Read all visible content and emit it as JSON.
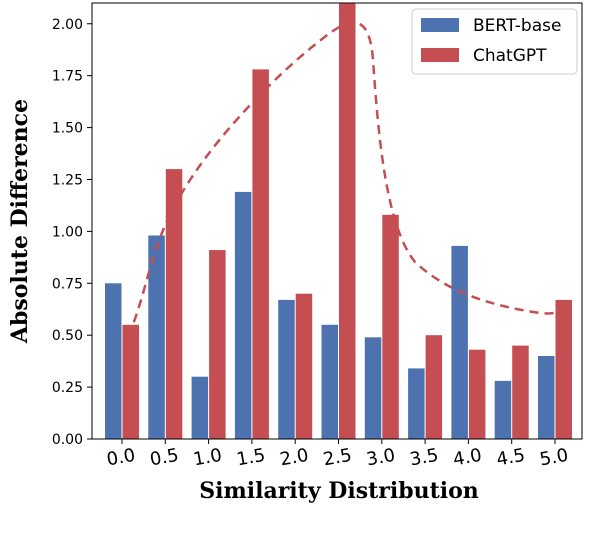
{
  "chart_data": {
    "type": "bar",
    "title": "",
    "xlabel": "Similarity Distribution",
    "ylabel": "Absolute Difference",
    "categories": [
      "0.0",
      "0.5",
      "1.0",
      "1.5",
      "2.0",
      "2.5",
      "3.0",
      "3.5",
      "4.0",
      "4.5",
      "5.0"
    ],
    "series": [
      {
        "name": "BERT-base",
        "color": "#4C72B0",
        "values": [
          0.75,
          0.98,
          0.3,
          1.19,
          0.67,
          0.55,
          0.49,
          0.34,
          0.93,
          0.28,
          0.4
        ]
      },
      {
        "name": "ChatGPT",
        "color": "#C44E52",
        "values": [
          0.55,
          1.3,
          0.91,
          1.78,
          0.7,
          2.1,
          1.08,
          0.5,
          0.43,
          0.45,
          0.67
        ]
      }
    ],
    "ylim": [
      0,
      2.1
    ],
    "yticks": [
      "0.00",
      "0.25",
      "0.50",
      "0.75",
      "1.00",
      "1.25",
      "1.50",
      "1.75",
      "2.00"
    ],
    "grid": false,
    "legend_position": "top-right",
    "annotation": {
      "type": "dashed-curve",
      "color": "#C44E52"
    }
  }
}
